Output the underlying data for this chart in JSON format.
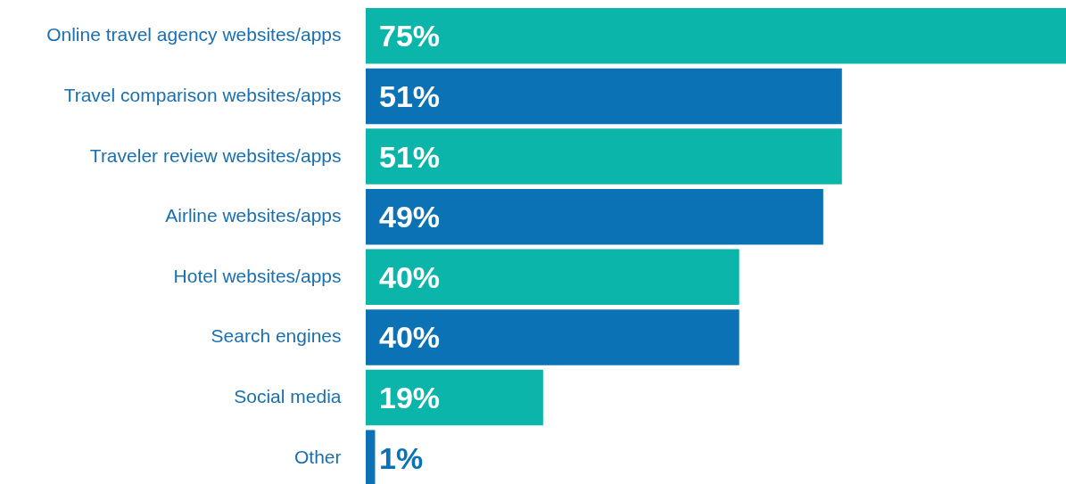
{
  "chart_data": {
    "type": "bar",
    "orientation": "horizontal",
    "categories": [
      "Online travel agency websites/apps",
      "Travel comparison websites/apps",
      "Traveler review websites/apps",
      "Airline websites/apps",
      "Hotel websites/apps",
      "Search engines",
      "Social media",
      "Other"
    ],
    "values": [
      75,
      51,
      51,
      49,
      40,
      40,
      19,
      1
    ],
    "value_labels": [
      "75%",
      "51%",
      "51%",
      "49%",
      "40%",
      "40%",
      "19%",
      "1%"
    ],
    "colors": [
      "#0bb5aa",
      "#0b72b5",
      "#0bb5aa",
      "#0b72b5",
      "#0bb5aa",
      "#0b72b5",
      "#0bb5aa",
      "#0b72b5"
    ]
  }
}
